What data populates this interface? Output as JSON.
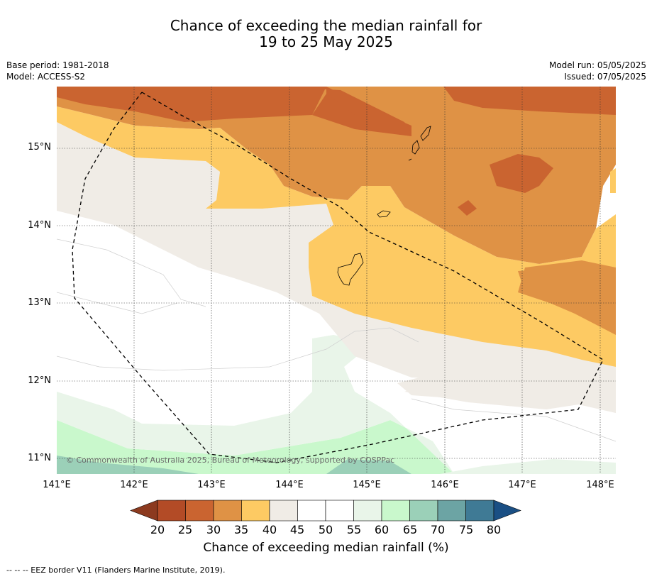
{
  "title": {
    "line1": "Chance of exceeding the median rainfall for",
    "line2": "19 to 25 May 2025"
  },
  "meta": {
    "base_period": "Base period: 1981-2018",
    "model": "Model: ACCESS-S2",
    "model_run": "Model run: 05/05/2025",
    "issued": "Issued: 07/05/2025"
  },
  "map": {
    "lat_labels": [
      "15°N",
      "14°N",
      "13°N",
      "12°N",
      "11°N"
    ],
    "lon_labels": [
      "141°E",
      "142°E",
      "143°E",
      "144°E",
      "145°E",
      "146°E",
      "147°E",
      "148°E"
    ],
    "copyright": "© Commonwealth of Australia 2025, Bureau of Meteorology, supported by COSPPac"
  },
  "colorbar": {
    "ticks": [
      "20",
      "25",
      "30",
      "35",
      "40",
      "45",
      "50",
      "55",
      "60",
      "65",
      "70",
      "75",
      "80"
    ],
    "colors": [
      "#8c3a1f",
      "#b34b26",
      "#ca6430",
      "#df9245",
      "#fdca63",
      "#f0ece6",
      "#ffffff",
      "#ffffff",
      "#e9f5e9",
      "#c9f8cc",
      "#9bd0b8",
      "#6ca4a4",
      "#3f7a95",
      "#1a4f84"
    ],
    "title": "Chance of exceeding median rainfall (%)"
  },
  "footnote": "--  --  -- EEZ border V11 (Flanders Marine Institute, 2019)."
}
